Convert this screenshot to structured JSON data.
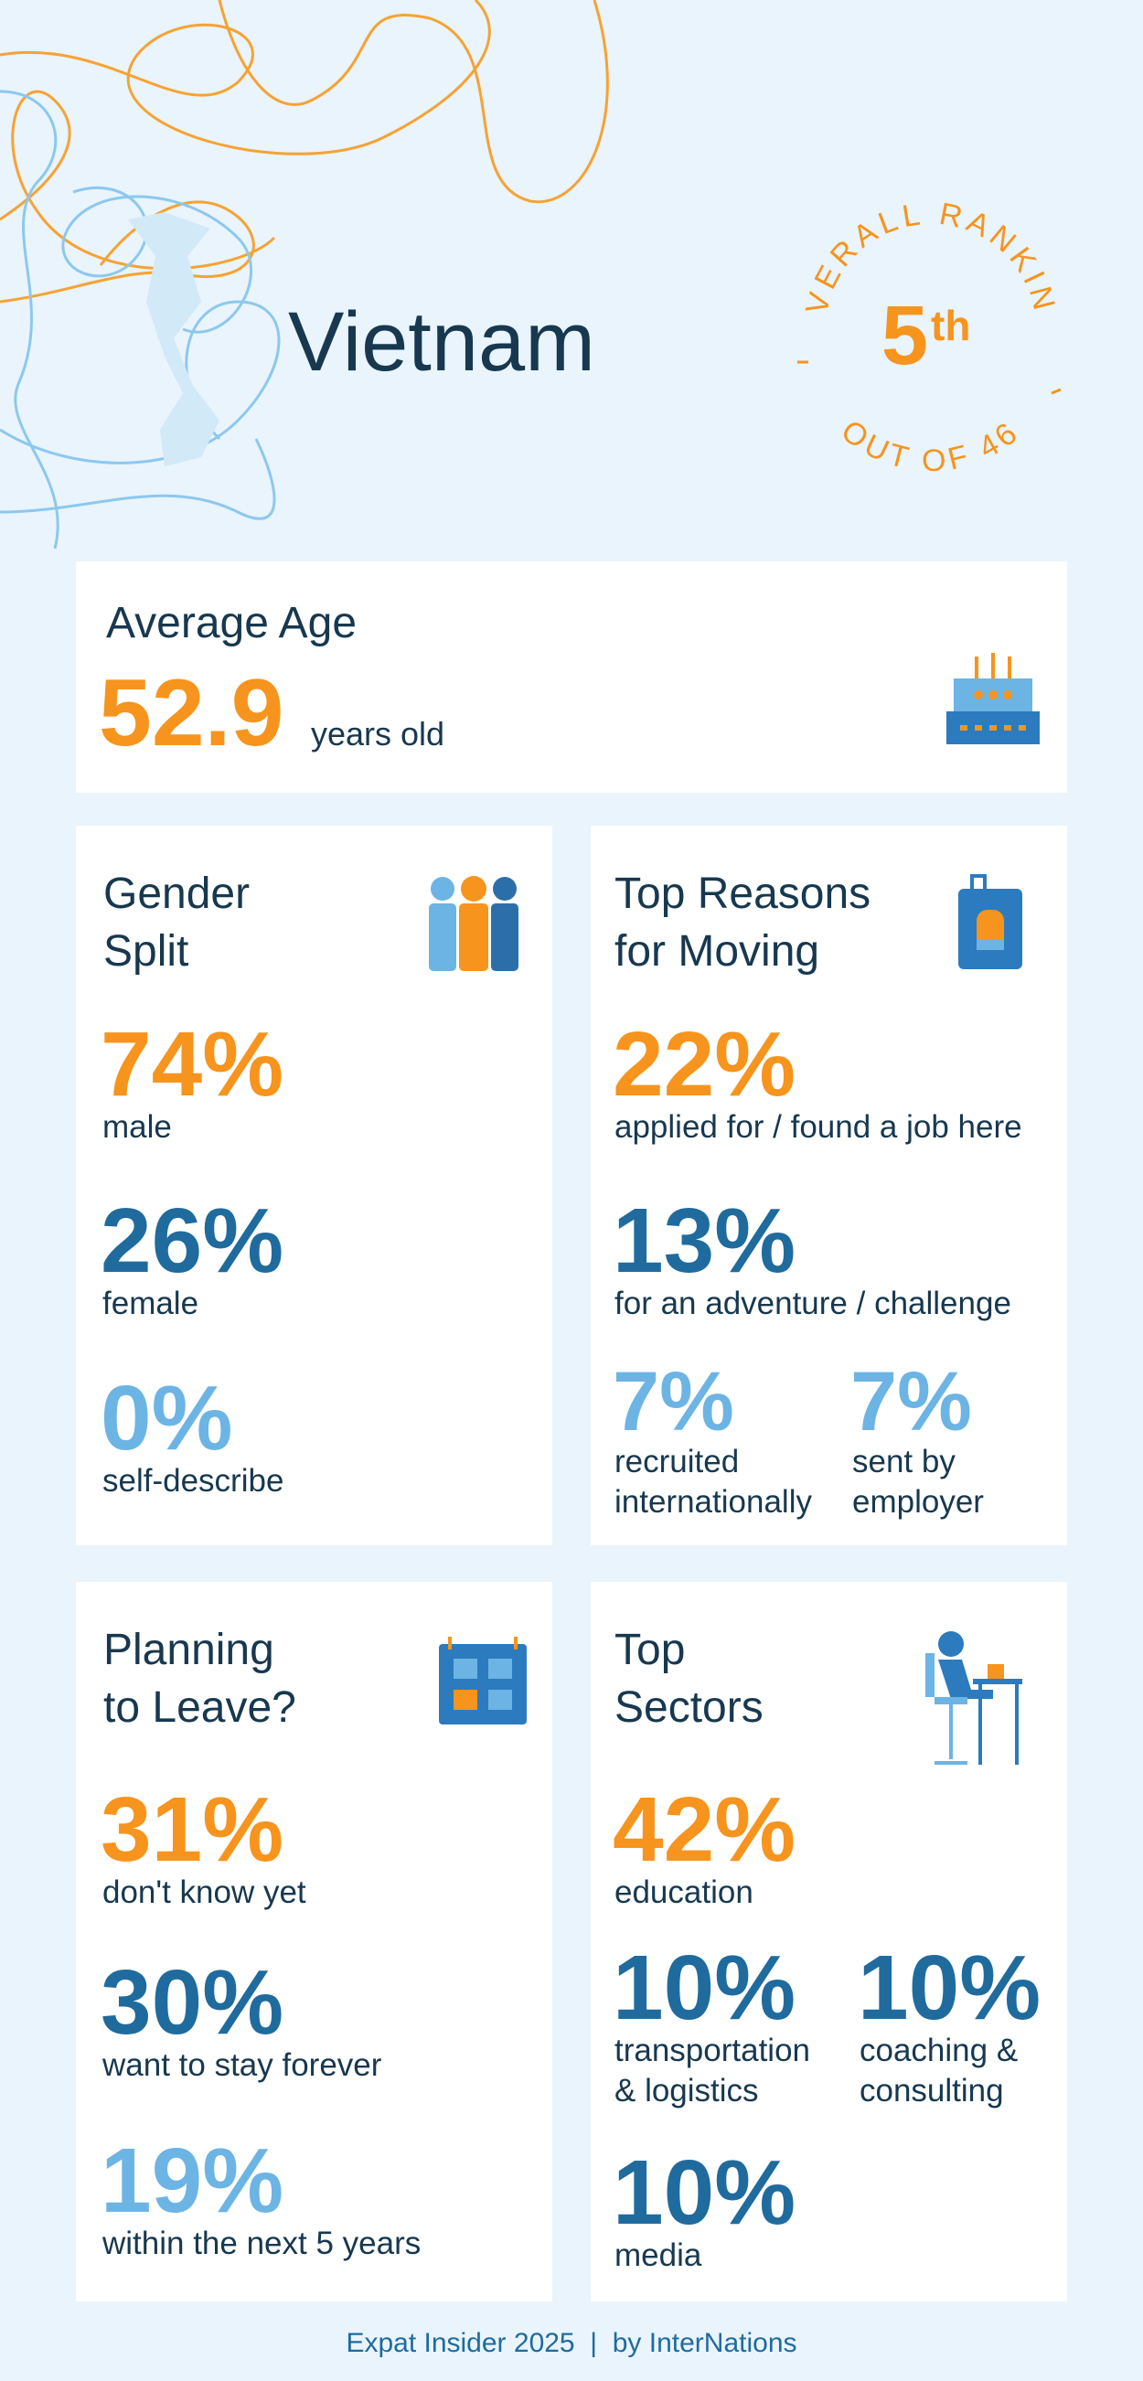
{
  "header": {
    "title": "Vietnam",
    "ranking": {
      "label": "OVERALL RANKING",
      "rank": "5",
      "suffix": "th",
      "total": "OUT OF 46"
    }
  },
  "average_age": {
    "title": "Average Age",
    "value": "52.9",
    "unit": "years old"
  },
  "gender_split": {
    "title": [
      "Gender",
      "Split"
    ],
    "items": [
      {
        "value": "74%",
        "label": [
          "male"
        ]
      },
      {
        "value": "26%",
        "label": [
          "female"
        ]
      },
      {
        "value": "0%",
        "label": [
          "self-describe"
        ]
      }
    ]
  },
  "reasons": {
    "title": [
      "Top Reasons",
      "for Moving"
    ],
    "items": [
      {
        "value": "22%",
        "label": [
          "applied for / found a job here"
        ]
      },
      {
        "value": "13%",
        "label": [
          "for an adventure / challenge"
        ]
      },
      {
        "value": "7%",
        "label": [
          "recruited",
          "internationally"
        ]
      },
      {
        "value": "7%",
        "label": [
          "sent by",
          "employer"
        ]
      }
    ]
  },
  "planning": {
    "title": [
      "Planning",
      "to Leave?"
    ],
    "items": [
      {
        "value": "31%",
        "label": [
          "don't know yet"
        ]
      },
      {
        "value": "30%",
        "label": [
          "want to stay forever"
        ]
      },
      {
        "value": "19%",
        "label": [
          "within the next 5 years"
        ]
      }
    ]
  },
  "sectors": {
    "title": [
      "Top",
      "Sectors"
    ],
    "items": [
      {
        "value": "42%",
        "label": [
          "education"
        ]
      },
      {
        "value": "10%",
        "label": [
          "transportation",
          "& logistics"
        ]
      },
      {
        "value": "10%",
        "label": [
          "coaching &",
          "consulting"
        ]
      },
      {
        "value": "10%",
        "label": [
          "media"
        ]
      }
    ]
  },
  "footer": "Expat Insider 2025  |  by InterNations"
}
